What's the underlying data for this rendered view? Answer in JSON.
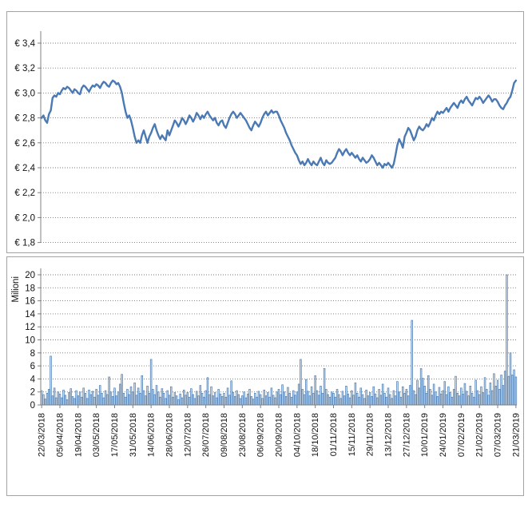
{
  "page": {
    "background": "#ffffff",
    "panel_border": "#a3a3a3",
    "grid_color": "#787878",
    "axis_color": "#808080",
    "text_color": "#111111"
  },
  "chart_data": [
    {
      "type": "line",
      "name": "share-price-eur",
      "line_color": "#4a79b4",
      "ylim": [
        1.8,
        3.4
      ],
      "grid": "dotted",
      "y_ticks": [
        "€ 3,4",
        "€ 3,2",
        "€ 3,0",
        "€ 2,8",
        "€ 2,6",
        "€ 2,4",
        "€ 2,2",
        "€ 2,0",
        "€ 1,8"
      ],
      "values": [
        2.8,
        2.82,
        2.78,
        2.76,
        2.83,
        2.86,
        2.96,
        2.98,
        2.97,
        3.0,
        2.99,
        3.02,
        3.04,
        3.03,
        3.05,
        3.04,
        3.02,
        3.0,
        3.03,
        3.02,
        3.0,
        2.99,
        3.04,
        3.06,
        3.05,
        3.03,
        3.01,
        3.04,
        3.06,
        3.05,
        3.07,
        3.06,
        3.04,
        3.07,
        3.09,
        3.08,
        3.06,
        3.05,
        3.08,
        3.1,
        3.09,
        3.07,
        3.08,
        3.05,
        3.0,
        2.92,
        2.85,
        2.8,
        2.82,
        2.78,
        2.72,
        2.65,
        2.6,
        2.62,
        2.6,
        2.66,
        2.7,
        2.65,
        2.6,
        2.65,
        2.68,
        2.72,
        2.75,
        2.7,
        2.66,
        2.63,
        2.66,
        2.64,
        2.62,
        2.7,
        2.66,
        2.7,
        2.74,
        2.78,
        2.76,
        2.73,
        2.76,
        2.8,
        2.78,
        2.75,
        2.78,
        2.82,
        2.8,
        2.77,
        2.8,
        2.84,
        2.82,
        2.79,
        2.82,
        2.8,
        2.83,
        2.85,
        2.82,
        2.8,
        2.78,
        2.8,
        2.76,
        2.74,
        2.77,
        2.78,
        2.74,
        2.72,
        2.76,
        2.8,
        2.83,
        2.85,
        2.83,
        2.8,
        2.82,
        2.84,
        2.82,
        2.8,
        2.78,
        2.75,
        2.72,
        2.7,
        2.74,
        2.77,
        2.75,
        2.73,
        2.76,
        2.8,
        2.83,
        2.85,
        2.82,
        2.84,
        2.86,
        2.84,
        2.85,
        2.85,
        2.82,
        2.78,
        2.75,
        2.72,
        2.68,
        2.65,
        2.62,
        2.58,
        2.55,
        2.52,
        2.5,
        2.46,
        2.43,
        2.45,
        2.42,
        2.44,
        2.47,
        2.44,
        2.42,
        2.45,
        2.43,
        2.42,
        2.45,
        2.48,
        2.44,
        2.42,
        2.46,
        2.44,
        2.43,
        2.44,
        2.46,
        2.48,
        2.52,
        2.55,
        2.53,
        2.5,
        2.53,
        2.55,
        2.52,
        2.5,
        2.52,
        2.5,
        2.48,
        2.5,
        2.47,
        2.45,
        2.48,
        2.46,
        2.44,
        2.45,
        2.47,
        2.5,
        2.48,
        2.45,
        2.42,
        2.44,
        2.42,
        2.4,
        2.43,
        2.42,
        2.44,
        2.42,
        2.4,
        2.43,
        2.5,
        2.58,
        2.63,
        2.6,
        2.56,
        2.65,
        2.68,
        2.72,
        2.7,
        2.66,
        2.62,
        2.65,
        2.7,
        2.73,
        2.71,
        2.7,
        2.72,
        2.75,
        2.73,
        2.76,
        2.8,
        2.78,
        2.82,
        2.85,
        2.83,
        2.85,
        2.84,
        2.86,
        2.88,
        2.85,
        2.88,
        2.9,
        2.92,
        2.9,
        2.88,
        2.92,
        2.94,
        2.92,
        2.95,
        2.97,
        2.94,
        2.92,
        2.9,
        2.93,
        2.96,
        2.95,
        2.97,
        2.95,
        2.92,
        2.94,
        2.96,
        2.98,
        2.96,
        2.93,
        2.95,
        2.95,
        2.93,
        2.9,
        2.88,
        2.87,
        2.9,
        2.92,
        2.95,
        2.97,
        3.02,
        3.08,
        3.1
      ]
    },
    {
      "type": "bar",
      "name": "volume-millions",
      "ylabel": "Milioni",
      "bar_edge": "#4e7fb5",
      "bar_fill": "#c7d8ea",
      "ylim": [
        0,
        20
      ],
      "grid": "dotted",
      "y_ticks": [
        "20",
        "18",
        "16",
        "14",
        "12",
        "10",
        "8",
        "6",
        "4",
        "2",
        "0"
      ],
      "x_labels": [
        "22/03/2018",
        "05/04/2018",
        "19/04/2018",
        "03/05/2018",
        "17/05/2018",
        "31/05/2018",
        "14/06/2018",
        "28/06/2018",
        "12/07/2018",
        "26/07/2018",
        "09/08/2018",
        "23/08/2018",
        "06/09/2018",
        "20/09/2018",
        "04/10/2018",
        "18/10/2018",
        "01/11/2018",
        "15/11/2018",
        "29/11/2018",
        "13/12/2018",
        "27/12/2018",
        "10/01/2019",
        "24/01/2019",
        "07/02/2019",
        "21/02/2019",
        "07/03/2019",
        "21/03/2019"
      ],
      "values": [
        2.2,
        1.6,
        0.9,
        1.8,
        2.4,
        7.5,
        1.4,
        2.6,
        1.1,
        2.0,
        1.7,
        1.1,
        2.3,
        1.5,
        0.8,
        1.9,
        2.5,
        1.3,
        1.0,
        2.2,
        1.4,
        2.0,
        1.2,
        2.6,
        1.8,
        1.0,
        2.3,
        1.6,
        2.1,
        1.2,
        2.4,
        1.5,
        3.0,
        1.8,
        1.1,
        2.2,
        1.6,
        4.3,
        2.0,
        1.3,
        2.6,
        1.4,
        2.0,
        3.2,
        4.7,
        1.8,
        1.2,
        2.4,
        1.6,
        2.8,
        2.0,
        3.4,
        1.5,
        2.6,
        1.8,
        4.5,
        2.2,
        1.4,
        2.9,
        1.8,
        7.0,
        2.4,
        1.6,
        3.0,
        2.0,
        1.2,
        2.5,
        1.8,
        1.0,
        2.2,
        1.5,
        2.8,
        1.2,
        1.9,
        1.4,
        0.8,
        1.7,
        1.1,
        2.3,
        1.5,
        1.9,
        1.2,
        2.5,
        1.6,
        1.0,
        2.1,
        1.4,
        3.0,
        1.8,
        1.2,
        2.2,
        4.2,
        1.6,
        2.8,
        1.4,
        1.9,
        1.1,
        2.4,
        1.7,
        1.3,
        1.8,
        1.2,
        2.6,
        1.5,
        3.7,
        1.9,
        1.3,
        2.2,
        1.6,
        1.0,
        1.4,
        2.0,
        1.1,
        1.7,
        2.4,
        1.3,
        0.9,
        1.8,
        1.2,
        2.1,
        1.6,
        1.0,
        2.3,
        1.4,
        1.9,
        1.2,
        2.6,
        1.5,
        1.1,
        2.0,
        2.4,
        1.6,
        3.1,
        2.0,
        1.3,
        2.7,
        1.8,
        1.2,
        2.2,
        1.5,
        2.0,
        3.2,
        7.0,
        2.4,
        1.6,
        3.9,
        2.1,
        1.4,
        2.8,
        1.8,
        4.5,
        2.2,
        1.5,
        2.9,
        1.8,
        5.6,
        2.4,
        1.6,
        1.2,
        2.0,
        1.8,
        1.2,
        2.4,
        1.6,
        1.0,
        2.1,
        1.4,
        2.9,
        1.7,
        1.1,
        2.2,
        1.5,
        3.4,
        1.8,
        1.2,
        2.6,
        1.6,
        1.0,
        2.3,
        1.4,
        1.9,
        1.3,
        2.8,
        1.7,
        1.1,
        2.4,
        1.5,
        3.2,
        1.8,
        1.2,
        2.6,
        1.6,
        1.0,
        2.2,
        1.4,
        3.6,
        2.0,
        1.2,
        2.8,
        1.8,
        2.4,
        1.4,
        3.0,
        13.0,
        2.2,
        1.6,
        3.8,
        2.6,
        5.6,
        4.1,
        2.9,
        1.8,
        4.5,
        2.4,
        1.5,
        3.2,
        2.0,
        1.3,
        2.7,
        1.7,
        2.2,
        3.6,
        1.6,
        2.8,
        1.9,
        1.2,
        2.4,
        4.4,
        1.8,
        1.4,
        2.6,
        1.7,
        3.3,
        2.1,
        1.4,
        2.9,
        1.8,
        1.2,
        3.8,
        2.2,
        1.6,
        2.8,
        1.9,
        4.2,
        2.4,
        1.5,
        3.4,
        2.2,
        4.8,
        2.9,
        3.8,
        2.4,
        4.6,
        3.0,
        5.2,
        20.0,
        4.4,
        8.0,
        4.6,
        5.4,
        4.3
      ]
    }
  ]
}
